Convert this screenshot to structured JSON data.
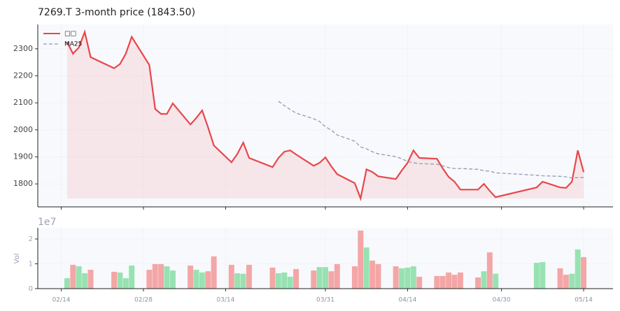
{
  "chart_data": [
    {
      "type": "line",
      "title": "7269.T  3-month price (1843.50)",
      "x": [
        "02/15",
        "02/16",
        "02/17",
        "02/18",
        "02/19",
        "02/23",
        "02/24",
        "02/25",
        "02/26",
        "03/01",
        "03/02",
        "03/03",
        "03/04",
        "03/05",
        "03/08",
        "03/09",
        "03/10",
        "03/11",
        "03/12",
        "03/15",
        "03/16",
        "03/17",
        "03/18",
        "03/22",
        "03/23",
        "03/24",
        "03/25",
        "03/26",
        "03/29",
        "03/30",
        "03/31",
        "04/01",
        "04/02",
        "04/05",
        "04/06",
        "04/07",
        "04/08",
        "04/09",
        "04/12",
        "04/13",
        "04/14",
        "04/15",
        "04/16",
        "04/19",
        "04/20",
        "04/21",
        "04/22",
        "04/23",
        "04/26",
        "04/27",
        "04/28",
        "04/29",
        "05/06",
        "05/07",
        "05/10",
        "05/11",
        "05/12",
        "05/13",
        "05/14"
      ],
      "series": [
        {
          "name": "□□",
          "color": "#e8474a",
          "fill": true,
          "values": [
            2325,
            2282,
            2305,
            2362,
            2269,
            2228,
            2243,
            2282,
            2344,
            2240,
            2077,
            2059,
            2059,
            2098,
            2020,
            2044,
            2072,
            2010,
            1942,
            1880,
            1911,
            1953,
            1896,
            1862,
            1896,
            1919,
            1924,
            1909,
            1867,
            1878,
            1898,
            1865,
            1836,
            1803,
            1746,
            1854,
            1844,
            1828,
            1818,
            1849,
            1878,
            1924,
            1896,
            1893,
            1857,
            1826,
            1808,
            1779,
            1779,
            1800,
            1774,
            1751,
            1787,
            1808,
            1787,
            1785,
            1808,
            1924,
            1843.5
          ]
        },
        {
          "name": "MA25",
          "color": "#8f9bb3",
          "dashed": true,
          "values": [
            null,
            null,
            null,
            null,
            null,
            null,
            null,
            null,
            null,
            null,
            null,
            null,
            null,
            null,
            null,
            null,
            null,
            null,
            null,
            null,
            null,
            null,
            null,
            null,
            2106,
            2090,
            2075,
            2062,
            2041,
            2031,
            2012,
            1999,
            1981,
            1958,
            1937,
            1930,
            1919,
            1911,
            1901,
            1893,
            1883,
            1878,
            1875,
            1873,
            1867,
            1860,
            1857,
            1857,
            1854,
            1849,
            1847,
            1841,
            1832,
            1830,
            1828,
            1826,
            1822,
            1823,
            1824
          ]
        }
      ],
      "xlim": [
        "02/10",
        "05/19"
      ],
      "ylim": [
        1715,
        2390
      ],
      "yticks": [
        1800,
        1900,
        2000,
        2100,
        2200,
        2300
      ],
      "grid": true,
      "legend": "upper left"
    },
    {
      "type": "bar",
      "ylabel": "Vol",
      "offset_label": "1e7",
      "x": [
        "02/15",
        "02/16",
        "02/17",
        "02/18",
        "02/19",
        "02/23",
        "02/24",
        "02/25",
        "02/26",
        "03/01",
        "03/02",
        "03/03",
        "03/04",
        "03/05",
        "03/08",
        "03/09",
        "03/10",
        "03/11",
        "03/12",
        "03/15",
        "03/16",
        "03/17",
        "03/18",
        "03/22",
        "03/23",
        "03/24",
        "03/25",
        "03/26",
        "03/29",
        "03/30",
        "03/31",
        "04/01",
        "04/02",
        "04/05",
        "04/06",
        "04/07",
        "04/08",
        "04/09",
        "04/12",
        "04/13",
        "04/14",
        "04/15",
        "04/16",
        "04/19",
        "04/20",
        "04/21",
        "04/22",
        "04/23",
        "04/26",
        "04/27",
        "04/28",
        "04/29",
        "05/06",
        "05/07",
        "05/10",
        "05/11",
        "05/12",
        "05/13",
        "05/14"
      ],
      "values": [
        0.42,
        0.96,
        0.9,
        0.62,
        0.76,
        0.68,
        0.65,
        0.42,
        0.93,
        0.76,
        0.99,
        0.99,
        0.9,
        0.73,
        0.93,
        0.76,
        0.65,
        0.7,
        1.3,
        0.96,
        0.62,
        0.6,
        0.96,
        0.85,
        0.62,
        0.65,
        0.48,
        0.79,
        0.73,
        0.87,
        0.87,
        0.7,
        0.99,
        0.9,
        2.34,
        1.66,
        1.13,
        0.99,
        0.9,
        0.82,
        0.85,
        0.9,
        0.48,
        0.51,
        0.51,
        0.65,
        0.56,
        0.65,
        0.45,
        0.7,
        1.46,
        0.6,
        1.04,
        1.07,
        0.82,
        0.56,
        0.6,
        1.58,
        1.27
      ],
      "colors": [
        "#98e2b2",
        "#f4a6a6",
        "#98e2b2",
        "#98e2b2",
        "#f4a6a6",
        "#f4a6a6",
        "#98e2b2",
        "#98e2b2",
        "#98e2b2",
        "#f4a6a6",
        "#f4a6a6",
        "#f4a6a6",
        "#98e2b2",
        "#98e2b2",
        "#f4a6a6",
        "#98e2b2",
        "#98e2b2",
        "#f4a6a6",
        "#f4a6a6",
        "#f4a6a6",
        "#98e2b2",
        "#98e2b2",
        "#f4a6a6",
        "#f4a6a6",
        "#98e2b2",
        "#98e2b2",
        "#98e2b2",
        "#f4a6a6",
        "#f4a6a6",
        "#98e2b2",
        "#98e2b2",
        "#f4a6a6",
        "#f4a6a6",
        "#f4a6a6",
        "#f4a6a6",
        "#98e2b2",
        "#f4a6a6",
        "#f4a6a6",
        "#f4a6a6",
        "#98e2b2",
        "#98e2b2",
        "#98e2b2",
        "#f4a6a6",
        "#f4a6a6",
        "#f4a6a6",
        "#f4a6a6",
        "#f4a6a6",
        "#f4a6a6",
        "#f4a6a6",
        "#98e2b2",
        "#f4a6a6",
        "#98e2b2",
        "#98e2b2",
        "#98e2b2",
        "#f4a6a6",
        "#f4a6a6",
        "#98e2b2",
        "#98e2b2",
        "#f4a6a6"
      ],
      "xlim": [
        "02/10",
        "05/19"
      ],
      "ylim": [
        0,
        2.45
      ],
      "yticks": [
        0,
        1,
        2
      ],
      "xticks": [
        "02/14",
        "02/28",
        "03/14",
        "03/31",
        "04/14",
        "04/30",
        "05/14"
      ],
      "grid": true
    }
  ]
}
